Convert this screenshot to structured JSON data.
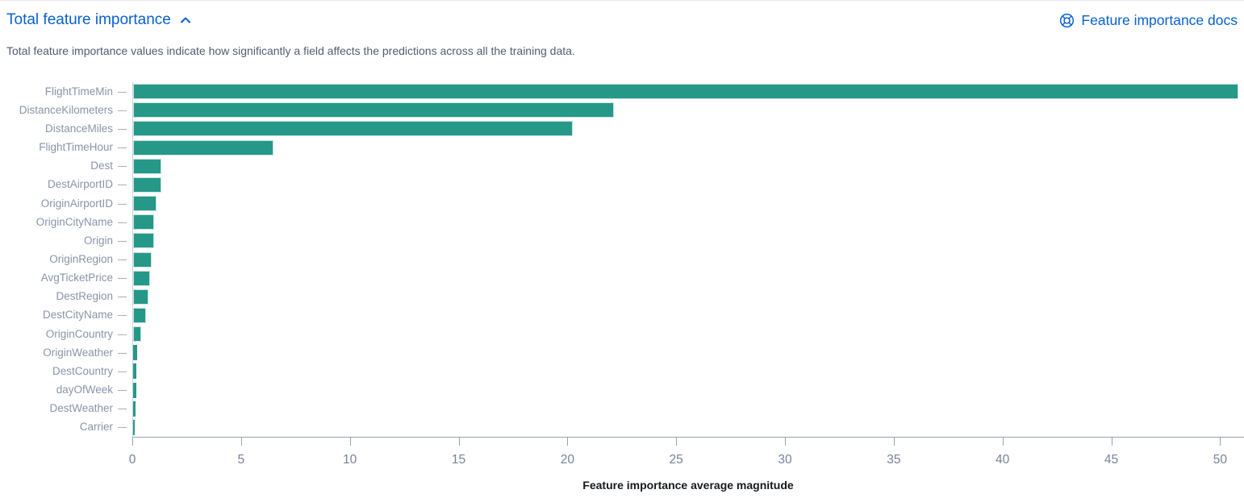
{
  "header": {
    "title": "Total feature importance",
    "docs_link": "Feature importance docs"
  },
  "description": "Total feature importance values indicate how significantly a field affects the predictions across all the training data.",
  "colors": {
    "accent_blue": "#0861d1",
    "bar_teal": "#269888"
  },
  "chart_data": {
    "type": "bar",
    "orientation": "horizontal",
    "title": "Total feature importance",
    "xlabel": "Feature importance average magnitude",
    "ylabel": "",
    "categories": [
      "FlightTimeMin",
      "DistanceKilometers",
      "DistanceMiles",
      "FlightTimeHour",
      "Dest",
      "DestAirportID",
      "OriginAirportID",
      "OriginCityName",
      "Origin",
      "OriginRegion",
      "AvgTicketPrice",
      "DestRegion",
      "DestCityName",
      "OriginCountry",
      "OriginWeather",
      "DestCountry",
      "dayOfWeek",
      "DestWeather",
      "Carrier"
    ],
    "values": [
      50.8,
      22.1,
      20.2,
      6.45,
      1.31,
      1.28,
      1.06,
      0.96,
      0.95,
      0.86,
      0.78,
      0.69,
      0.58,
      0.37,
      0.17,
      0.16,
      0.15,
      0.11,
      0.08
    ],
    "x_ticks": [
      0,
      5,
      10,
      15,
      20,
      25,
      30,
      35,
      40,
      45,
      50
    ],
    "xlim": [
      0,
      51.1
    ],
    "grid": false,
    "legend": "none"
  }
}
